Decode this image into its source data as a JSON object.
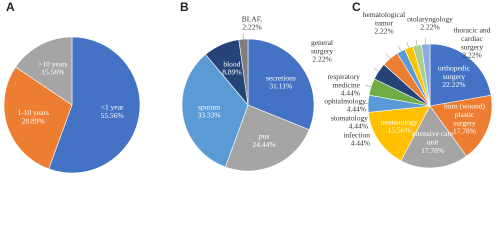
{
  "chart_data": [
    {
      "type": "pie",
      "title": "A",
      "categories": [
        "<1 year",
        "1-10 years",
        ">10 years"
      ],
      "values": [
        55.56,
        28.89,
        15.56
      ],
      "value_labels": [
        "55.56%",
        "28.89%",
        "15.56%"
      ],
      "colors": [
        "#4472c4",
        "#ed7d31",
        "#a5a5a5"
      ]
    },
    {
      "type": "pie",
      "title": "B",
      "categories": [
        "secretions",
        "pus",
        "sputum",
        "blood",
        "BLAF,"
      ],
      "values": [
        31.11,
        24.44,
        33.33,
        8.89,
        2.22
      ],
      "value_labels": [
        "31.11%",
        "24.44%",
        "33.33%",
        "8.89%",
        "2.22%"
      ],
      "colors": [
        "#4472c4",
        "#a5a5a5",
        "#5b9bd5",
        "#264478",
        "#7f7f7f"
      ]
    },
    {
      "type": "pie",
      "title": "C",
      "categories": [
        "orthopedic surgery",
        "burn (wound) plastic surgery",
        "intensive care unit",
        "neonatology",
        "infection",
        "stomatology",
        "ophtalmology",
        "respiratory medicine",
        "general surgery",
        "hematological tumor",
        "otolaryngology",
        "thoracic and cardiac surgery"
      ],
      "values": [
        22.22,
        17.78,
        17.78,
        15.56,
        4.44,
        4.44,
        4.44,
        4.44,
        2.22,
        2.22,
        2.22,
        2.22
      ],
      "value_labels": [
        "22.22%",
        "17.78%",
        "17.78%",
        "15.56%",
        "4.44%",
        "4.44%",
        "4.44%",
        "4.44%",
        "2.22%",
        "2.22%",
        "2.22%",
        "2.22%"
      ],
      "colors": [
        "#4472c4",
        "#ed7d31",
        "#a5a5a5",
        "#ffc000",
        "#5b9bd5",
        "#70ad47",
        "#264478",
        "#ed7d31",
        "#5b9bd5",
        "#ffc000",
        "#a9d18e",
        "#8faadc"
      ]
    }
  ]
}
